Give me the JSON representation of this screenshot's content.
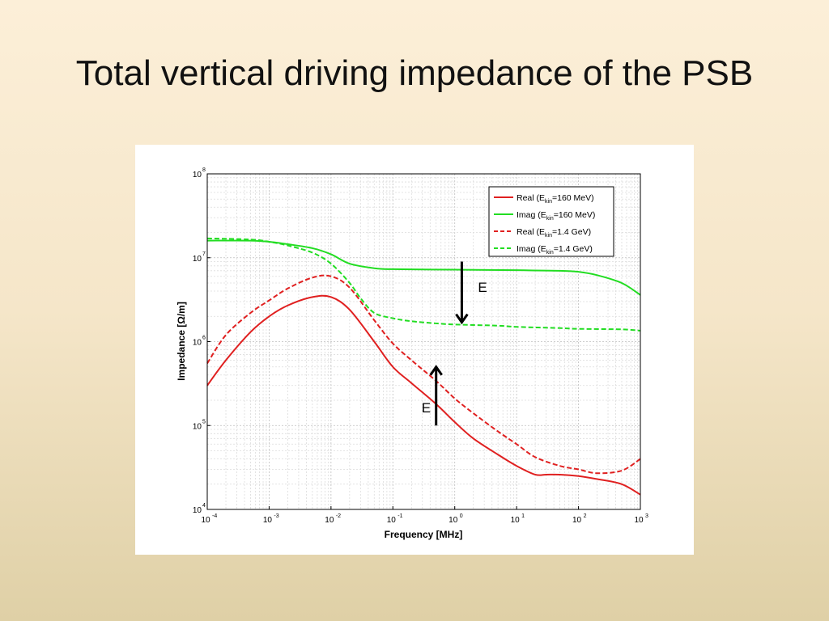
{
  "slide": {
    "title": "Total vertical driving impedance of the PSB"
  },
  "chart_data": {
    "type": "line",
    "x_scale": "log",
    "y_scale": "log",
    "xlim": [
      0.0001,
      1000
    ],
    "ylim": [
      10000,
      100000000
    ],
    "xlabel": "Frequency [MHz]",
    "ylabel": "Impedance [Ω/m]",
    "grid": true,
    "legend_position": "top-right",
    "x_ticks": [
      {
        "base": "10",
        "exp": "-4"
      },
      {
        "base": "10",
        "exp": "-3"
      },
      {
        "base": "10",
        "exp": "-2"
      },
      {
        "base": "10",
        "exp": "-1"
      },
      {
        "base": "10",
        "exp": "0"
      },
      {
        "base": "10",
        "exp": "1"
      },
      {
        "base": "10",
        "exp": "2"
      },
      {
        "base": "10",
        "exp": "3"
      }
    ],
    "y_ticks": [
      {
        "base": "10",
        "exp": "4"
      },
      {
        "base": "10",
        "exp": "5"
      },
      {
        "base": "10",
        "exp": "6"
      },
      {
        "base": "10",
        "exp": "7"
      },
      {
        "base": "10",
        "exp": "8"
      }
    ],
    "series": [
      {
        "name": "Real (E_kin=160 MeV)",
        "label_parts": {
          "pre": "Real (E",
          "sub": "kin",
          "post": "=160 MeV)"
        },
        "color": "#e02020",
        "dash": "solid",
        "x": [
          0.0001,
          0.0002,
          0.0005,
          0.001,
          0.002,
          0.005,
          0.01,
          0.02,
          0.05,
          0.1,
          0.2,
          0.5,
          1,
          2,
          5,
          10,
          20,
          30,
          50,
          100,
          200,
          500,
          1000
        ],
        "y": [
          300000,
          600000,
          1300000,
          2000000,
          2700000,
          3400000,
          3400000,
          2400000,
          1000000,
          500000,
          320000,
          180000,
          110000,
          70000,
          45000,
          33000,
          26000,
          26000,
          26000,
          25000,
          23000,
          20000,
          15000
        ]
      },
      {
        "name": "Imag (E_kin=160 MeV)",
        "label_parts": {
          "pre": "Imag (E",
          "sub": "kin",
          "post": "=160 MeV)"
        },
        "color": "#22dd22",
        "dash": "solid",
        "x": [
          0.0001,
          0.0005,
          0.001,
          0.002,
          0.005,
          0.01,
          0.02,
          0.05,
          0.1,
          1,
          10,
          50,
          100,
          200,
          500,
          1000
        ],
        "y": [
          16000000,
          16000000,
          15500000,
          14500000,
          13000000,
          11000000,
          8500000,
          7500000,
          7300000,
          7200000,
          7100000,
          7000000,
          6800000,
          6200000,
          5000000,
          3600000
        ]
      },
      {
        "name": "Real (E_kin=1.4 GeV)",
        "label_parts": {
          "pre": "Real (E",
          "sub": "kin",
          "post": "=1.4 GeV)"
        },
        "color": "#e02020",
        "dash": "dashed",
        "x": [
          0.0001,
          0.0002,
          0.0005,
          0.001,
          0.002,
          0.005,
          0.01,
          0.02,
          0.05,
          0.1,
          0.2,
          0.5,
          1,
          2,
          5,
          10,
          20,
          50,
          100,
          200,
          500,
          1000
        ],
        "y": [
          550000,
          1200000,
          2200000,
          3100000,
          4300000,
          5800000,
          6000000,
          4400000,
          1800000,
          950000,
          600000,
          340000,
          210000,
          140000,
          85000,
          60000,
          42000,
          33000,
          30000,
          27000,
          29000,
          40000
        ]
      },
      {
        "name": "Imag (E_kin=1.4 GeV)",
        "label_parts": {
          "pre": "Imag (E",
          "sub": "kin",
          "post": "=1.4 GeV)"
        },
        "color": "#22dd22",
        "dash": "dashed",
        "x": [
          0.0001,
          0.0005,
          0.001,
          0.002,
          0.005,
          0.01,
          0.02,
          0.03,
          0.05,
          0.1,
          0.2,
          0.5,
          1,
          5,
          10,
          50,
          100,
          500,
          1000
        ],
        "y": [
          17000000,
          16500000,
          15500000,
          14000000,
          11500000,
          8500000,
          5000000,
          3300000,
          2200000,
          1900000,
          1750000,
          1650000,
          1600000,
          1550000,
          1500000,
          1450000,
          1420000,
          1400000,
          1350000
        ]
      }
    ],
    "annotations": [
      {
        "text": "E",
        "direction": "down",
        "x": 1.3,
        "y_from": 9000000,
        "y_to": 1700000
      },
      {
        "text": "E",
        "direction": "up",
        "x": 0.5,
        "y_from": 100000,
        "y_to": 500000
      }
    ]
  }
}
